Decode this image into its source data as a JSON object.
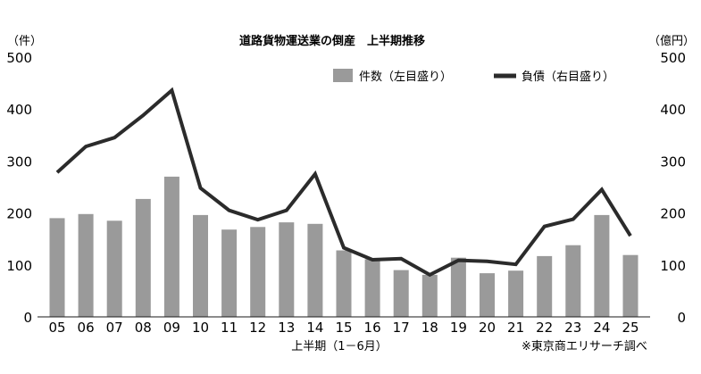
{
  "chart_data": {
    "type": "bar+line",
    "title": "道路貨物運送業の倒産　上半期推移",
    "xlabel": "上半期（1－6月）",
    "source": "※東京商エリサーチ調べ",
    "y_left": {
      "unit": "（件）",
      "ylim": [
        0,
        500
      ],
      "ticks": [
        "0",
        "100",
        "200",
        "300",
        "400",
        "500"
      ]
    },
    "y_right": {
      "unit": "（億円）",
      "ylim": [
        0,
        500
      ],
      "ticks": [
        "0",
        "100",
        "200",
        "300",
        "400",
        "500"
      ]
    },
    "categories": [
      "05",
      "06",
      "07",
      "08",
      "09",
      "10",
      "11",
      "12",
      "13",
      "14",
      "15",
      "16",
      "17",
      "18",
      "19",
      "20",
      "21",
      "22",
      "23",
      "24",
      "25"
    ],
    "series": [
      {
        "name": "件数（左目盛り）",
        "type": "bar",
        "axis": "left",
        "color": "#9a9a9a",
        "values": [
          190,
          198,
          185,
          227,
          270,
          196,
          168,
          173,
          182,
          179,
          128,
          111,
          90,
          81,
          114,
          84,
          89,
          117,
          138,
          196,
          119
        ]
      },
      {
        "name": "負債（右目盛り）",
        "type": "line",
        "axis": "right",
        "color": "#2b2b2b",
        "values": [
          278,
          328,
          345,
          388,
          436,
          248,
          205,
          187,
          205,
          275,
          133,
          110,
          112,
          81,
          109,
          107,
          101,
          174,
          188,
          245,
          156
        ]
      }
    ],
    "grid": false,
    "legend": "top-right"
  }
}
